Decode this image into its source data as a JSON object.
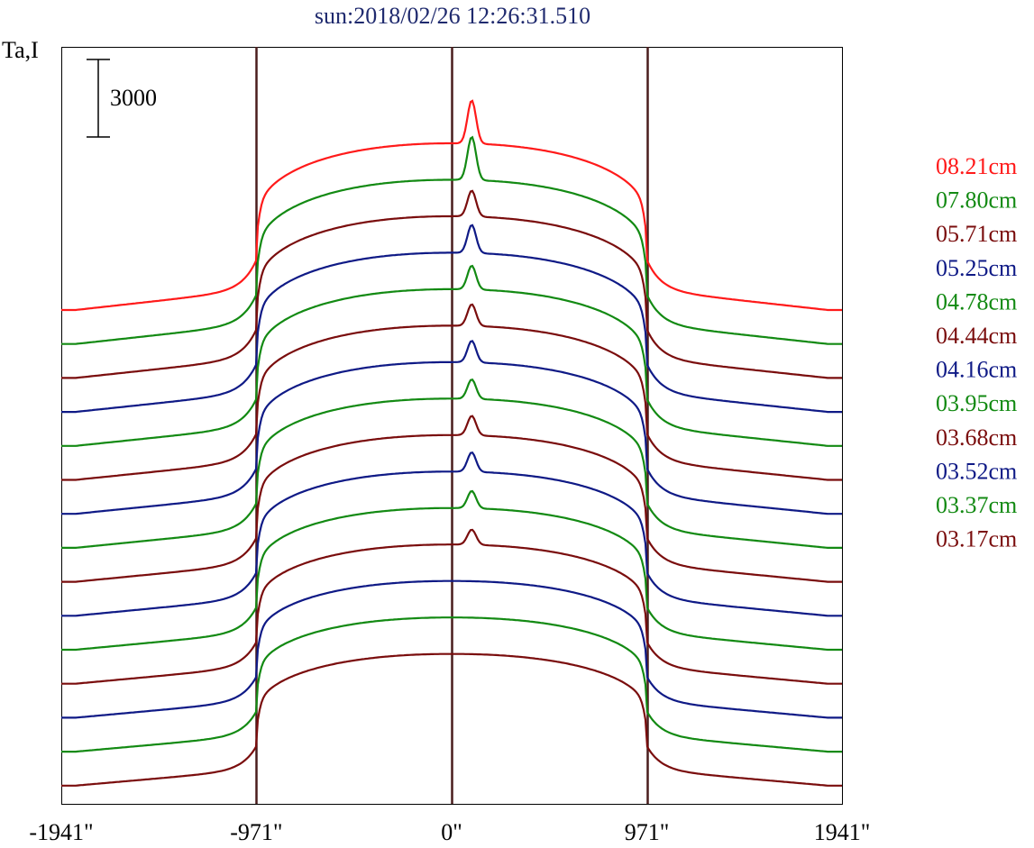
{
  "chart_data": {
    "type": "line",
    "title": "sun:2018/02/26 12:26:31.510",
    "ylabel": "Ta,I",
    "scale_bar_label": "3000",
    "xlim": [
      -1941,
      1941
    ],
    "x_ticks": [
      {
        "value": -1941,
        "label": "-1941\""
      },
      {
        "value": -971,
        "label": "-971\""
      },
      {
        "value": 0,
        "label": "0\""
      },
      {
        "value": 971,
        "label": "971\""
      },
      {
        "value": 1941,
        "label": "1941\""
      }
    ],
    "vertical_markers": [
      -971,
      0,
      971
    ],
    "grid": false,
    "legend_position": "right",
    "legend_items": [
      {
        "label": "08.21cm",
        "color": "#ff1a1a"
      },
      {
        "label": "07.80cm",
        "color": "#138a13"
      },
      {
        "label": "05.71cm",
        "color": "#7a0d0d"
      },
      {
        "label": "05.25cm",
        "color": "#0f1a86"
      },
      {
        "label": "04.78cm",
        "color": "#138a13"
      },
      {
        "label": "04.44cm",
        "color": "#7a0d0d"
      },
      {
        "label": "04.16cm",
        "color": "#0f1a86"
      },
      {
        "label": "03.95cm",
        "color": "#138a13"
      },
      {
        "label": "03.68cm",
        "color": "#7a0d0d"
      },
      {
        "label": "03.52cm",
        "color": "#0f1a86"
      },
      {
        "label": "03.37cm",
        "color": "#138a13"
      },
      {
        "label": "03.17cm",
        "color": "#7a0d0d"
      }
    ],
    "profiles": [
      {
        "color": "#ff1a1a",
        "peak": 1.0
      },
      {
        "color": "#138a13",
        "peak": 1.0
      },
      {
        "color": "#7a0d0d",
        "peak": 0.6
      },
      {
        "color": "#0f1a86",
        "peak": 0.65
      },
      {
        "color": "#138a13",
        "peak": 0.55
      },
      {
        "color": "#7a0d0d",
        "peak": 0.5
      },
      {
        "color": "#0f1a86",
        "peak": 0.5
      },
      {
        "color": "#138a13",
        "peak": 0.45
      },
      {
        "color": "#7a0d0d",
        "peak": 0.45
      },
      {
        "color": "#0f1a86",
        "peak": 0.45
      },
      {
        "color": "#138a13",
        "peak": 0.4
      },
      {
        "color": "#7a0d0d",
        "peak": 0.35
      },
      {
        "color": "#0f1a86",
        "peak": 0.0
      },
      {
        "color": "#138a13",
        "peak": 0.0
      },
      {
        "color": "#7a0d0d",
        "peak": 0.0
      }
    ],
    "colors": {
      "frame": "#000000",
      "marker": "#4a1d1d",
      "title": "#1f2a6e",
      "axis_text": "#000000"
    }
  }
}
